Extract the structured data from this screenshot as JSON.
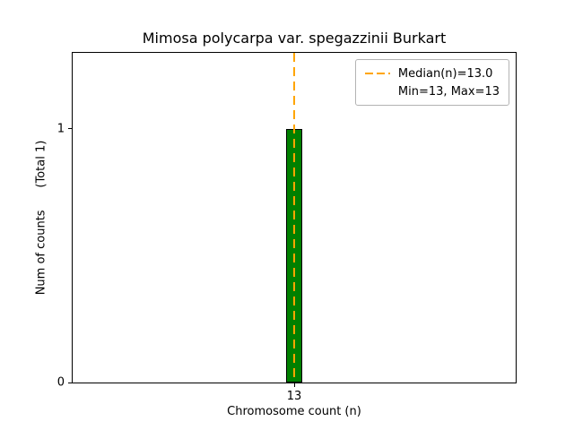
{
  "chart_data": {
    "type": "bar",
    "title": "Mimosa polycarpa var. spegazzinii Burkart",
    "xlabel": "Chromosome count (n)",
    "ylabel": "Num of counts      (Total 1)",
    "categories": [
      "13"
    ],
    "values": [
      1
    ],
    "ylim": [
      0,
      1.3
    ],
    "yticks": [
      0,
      1
    ],
    "grid": false,
    "bar_color": "#008000",
    "bar_edge_color": "#000000",
    "median_line": {
      "at_category": "13",
      "value": 13.0,
      "color": "#FFA500",
      "style": "dashed"
    },
    "legend": {
      "position": "upper right",
      "entries": [
        {
          "label": "Median(n)=13.0",
          "handle": "orange-dashed-line"
        },
        {
          "label": "Min=13, Max=13",
          "handle": "none"
        }
      ]
    }
  }
}
